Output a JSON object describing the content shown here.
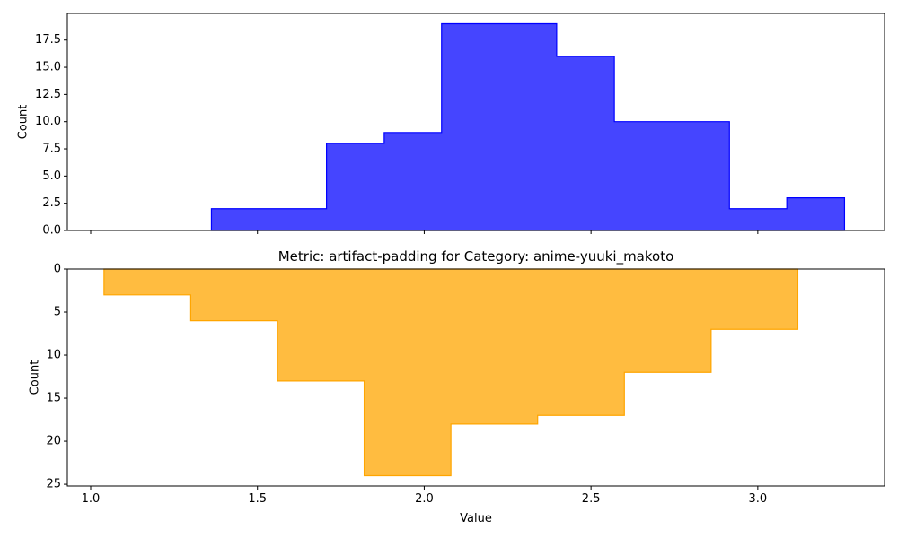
{
  "chart_data": [
    {
      "type": "histogram",
      "panel": "top",
      "title": "",
      "xlabel": "",
      "ylabel": "Count",
      "xlim": [
        0.93,
        3.38
      ],
      "ylim": [
        0,
        19.95
      ],
      "y_inverted": false,
      "y_ticks": [
        "0.0",
        "2.5",
        "5.0",
        "7.5",
        "10.0",
        "12.5",
        "15.0",
        "17.5"
      ],
      "y_tick_values": [
        0,
        2.5,
        5,
        7.5,
        10,
        12.5,
        15,
        17.5
      ],
      "x_tick_values": [
        1.0,
        1.5,
        2.0,
        2.5,
        3.0
      ],
      "show_x_tick_labels": false,
      "fill_color": "#0000ff",
      "fill_opacity": 0.73,
      "edge_color": "#0000ff",
      "bins": [
        {
          "x0": 1.362,
          "x1": 1.707,
          "count": 2
        },
        {
          "x0": 1.707,
          "x1": 1.88,
          "count": 8
        },
        {
          "x0": 1.88,
          "x1": 2.052,
          "count": 9
        },
        {
          "x0": 2.052,
          "x1": 2.397,
          "count": 19
        },
        {
          "x0": 2.397,
          "x1": 2.57,
          "count": 16
        },
        {
          "x0": 2.57,
          "x1": 2.915,
          "count": 10
        },
        {
          "x0": 2.915,
          "x1": 3.087,
          "count": 2
        },
        {
          "x0": 3.087,
          "x1": 3.26,
          "count": 3
        }
      ]
    },
    {
      "type": "histogram",
      "panel": "bottom",
      "title": "Metric: artifact-padding for Category: anime-yuuki_makoto",
      "xlabel": "Value",
      "ylabel": "Count",
      "xlim": [
        0.93,
        3.38
      ],
      "ylim": [
        0,
        25.2
      ],
      "y_inverted": true,
      "y_ticks": [
        "0",
        "5",
        "10",
        "15",
        "20",
        "25"
      ],
      "y_tick_values": [
        0,
        5,
        10,
        15,
        20,
        25
      ],
      "x_ticks": [
        "1.0",
        "1.5",
        "2.0",
        "2.5",
        "3.0"
      ],
      "x_tick_values": [
        1.0,
        1.5,
        2.0,
        2.5,
        3.0
      ],
      "show_x_tick_labels": true,
      "fill_color": "#ffa500",
      "fill_opacity": 0.75,
      "edge_color": "#ffa500",
      "bins": [
        {
          "x0": 1.04,
          "x1": 1.3,
          "count": 3
        },
        {
          "x0": 1.3,
          "x1": 1.56,
          "count": 6
        },
        {
          "x0": 1.56,
          "x1": 1.82,
          "count": 13
        },
        {
          "x0": 1.82,
          "x1": 2.08,
          "count": 24
        },
        {
          "x0": 2.08,
          "x1": 2.34,
          "count": 18
        },
        {
          "x0": 2.34,
          "x1": 2.6,
          "count": 17
        },
        {
          "x0": 2.6,
          "x1": 2.86,
          "count": 12
        },
        {
          "x0": 2.86,
          "x1": 3.12,
          "count": 7
        }
      ]
    }
  ]
}
